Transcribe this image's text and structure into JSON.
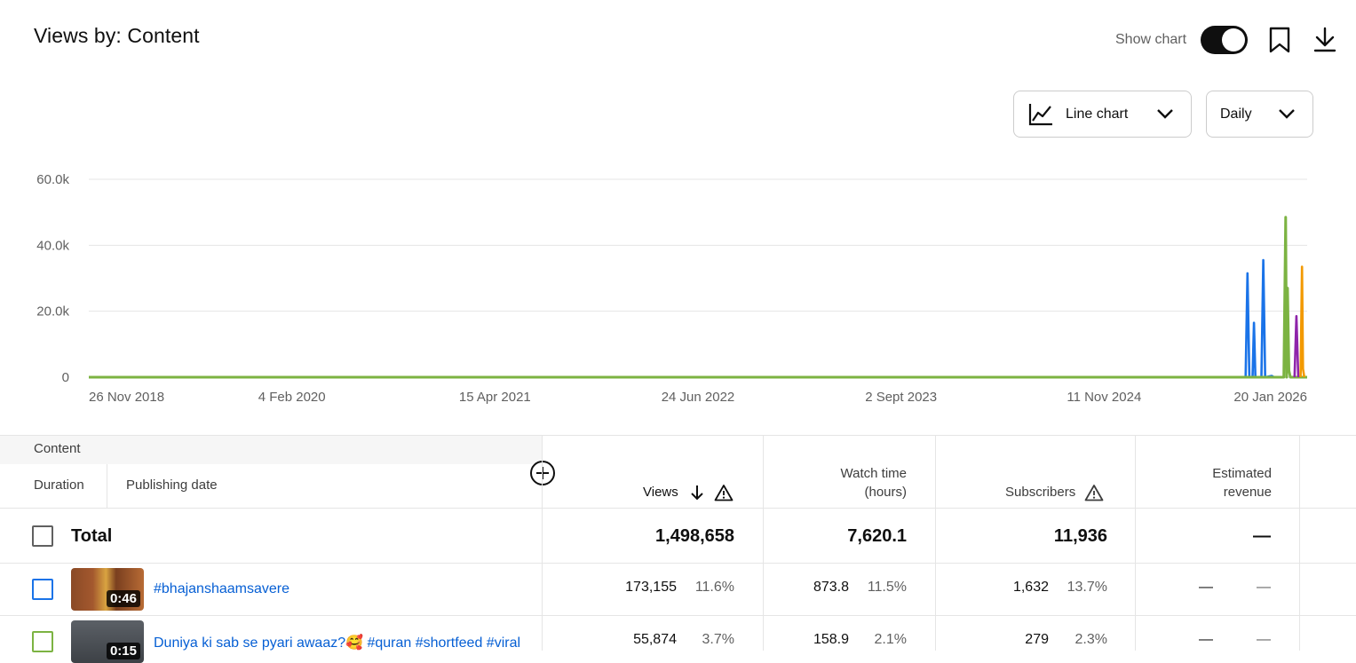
{
  "header": {
    "title": "Views by: Content",
    "show_chart_label": "Show chart",
    "show_chart_on": true
  },
  "controls": {
    "chart_type": "Line chart",
    "period": "Daily"
  },
  "chart_data": {
    "type": "line",
    "y_ticks": [
      "60.0k",
      "40.0k",
      "20.0k",
      "0"
    ],
    "x_ticks": [
      "26 Nov 2018",
      "4 Feb 2020",
      "15 Apr 2021",
      "24 Jun 2022",
      "2 Sept 2023",
      "11 Nov 2024",
      "20 Jan 2026"
    ],
    "x_start": "2018-11-26",
    "x_end": "2026-01-20",
    "ylim": [
      0,
      60000
    ],
    "grid": true,
    "series": [
      {
        "color": "#1a73e8",
        "points": [
          [
            "2025-09-10",
            0
          ],
          [
            "2025-09-14",
            31500
          ],
          [
            "2025-09-18",
            0
          ],
          [
            "2025-09-25",
            0
          ],
          [
            "2025-09-28",
            16500
          ],
          [
            "2025-10-01",
            0
          ],
          [
            "2025-10-14",
            0
          ],
          [
            "2025-10-18",
            35500
          ],
          [
            "2025-10-22",
            0
          ],
          [
            "2025-11-05",
            400
          ],
          [
            "2025-11-10",
            0
          ]
        ]
      },
      {
        "color": "#7cb342",
        "points": [
          [
            "2018-11-26",
            0
          ],
          [
            "2025-12-01",
            0
          ],
          [
            "2025-12-05",
            48500
          ],
          [
            "2025-12-07",
            0
          ],
          [
            "2025-12-09",
            27000
          ],
          [
            "2025-12-12",
            2000
          ],
          [
            "2025-12-15",
            0
          ],
          [
            "2026-01-20",
            0
          ]
        ]
      },
      {
        "color": "#8e24aa",
        "points": [
          [
            "2025-12-24",
            0
          ],
          [
            "2025-12-28",
            18500
          ],
          [
            "2026-01-01",
            0
          ]
        ]
      },
      {
        "color": "#f29900",
        "points": [
          [
            "2026-01-06",
            0
          ],
          [
            "2026-01-09",
            33500
          ],
          [
            "2026-01-11",
            2500
          ],
          [
            "2026-01-14",
            0
          ]
        ]
      }
    ]
  },
  "table": {
    "content_label": "Content",
    "duration_label": "Duration",
    "publishing_date_label": "Publishing date",
    "columns": {
      "views": "Views",
      "watch_time_1": "Watch time",
      "watch_time_2": "(hours)",
      "subscribers": "Subscribers",
      "revenue_1": "Estimated",
      "revenue_2": "revenue"
    },
    "total": {
      "label": "Total",
      "views": "1,498,658",
      "watch_time": "7,620.1",
      "subscribers": "11,936",
      "revenue": "—"
    },
    "rows": [
      {
        "title": "#bhajanshaamsavere",
        "duration": "0:46",
        "views": "173,155",
        "views_pct": "11.6%",
        "watch_time": "873.8",
        "watch_pct": "11.5%",
        "subscribers": "1,632",
        "subs_pct": "13.7%",
        "revenue": "—",
        "revenue_pct": "—",
        "checkbox_color": "#1a73e8"
      },
      {
        "title": "Duniya ki sab se pyari awaaz?🥰 #quran #shortfeed #viral",
        "duration": "0:15",
        "views": "55,874",
        "views_pct": "3.7%",
        "watch_time": "158.9",
        "watch_pct": "2.1%",
        "subscribers": "279",
        "subs_pct": "2.3%",
        "revenue": "—",
        "revenue_pct": "—",
        "checkbox_color": "#7cb342"
      }
    ]
  }
}
